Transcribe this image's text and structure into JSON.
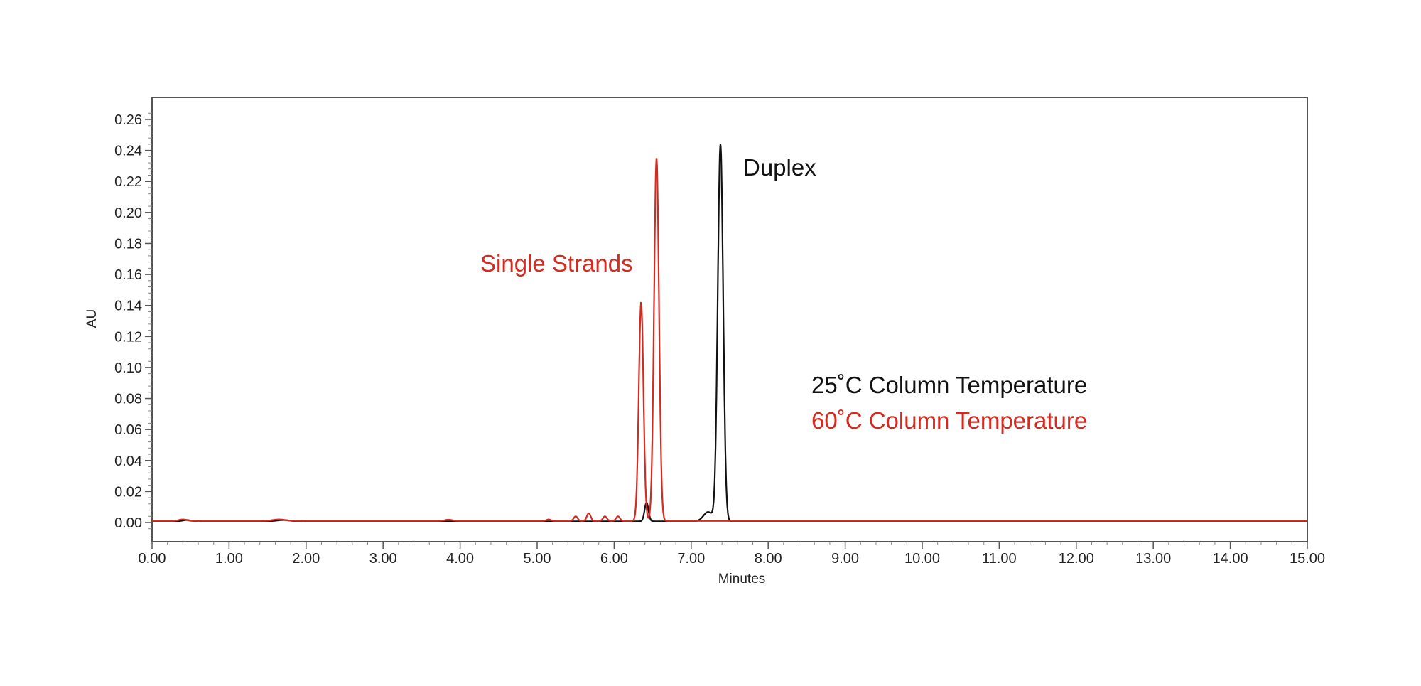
{
  "chart_data": {
    "type": "line",
    "title": "",
    "xlabel": "Minutes",
    "ylabel": "AU",
    "xlim": [
      0,
      15
    ],
    "ylim": [
      -0.01,
      0.27
    ],
    "xticks": [
      "0.00",
      "1.00",
      "2.00",
      "3.00",
      "4.00",
      "5.00",
      "6.00",
      "7.00",
      "8.00",
      "9.00",
      "10.00",
      "11.00",
      "12.00",
      "13.00",
      "14.00",
      "15.00"
    ],
    "yticks": [
      "0.00",
      "0.02",
      "0.04",
      "0.06",
      "0.08",
      "0.10",
      "0.12",
      "0.14",
      "0.16",
      "0.18",
      "0.20",
      "0.22",
      "0.24",
      "0.26"
    ],
    "grid": false,
    "series": [
      {
        "name": "25˚C Column Temperature",
        "color": "#111111",
        "baseline": 0.0008,
        "peaks": [
          {
            "rt": 0.45,
            "height": 0.0008,
            "width": 0.05
          },
          {
            "rt": 1.7,
            "height": 0.0008,
            "width": 0.08
          },
          {
            "rt": 6.42,
            "height": 0.012,
            "width": 0.025
          },
          {
            "rt": 7.22,
            "height": 0.006,
            "width": 0.06
          },
          {
            "rt": 7.38,
            "height": 0.243,
            "width": 0.035
          }
        ]
      },
      {
        "name": "60˚C Column Temperature",
        "color": "#d42a1f",
        "baseline": 0.001,
        "peaks": [
          {
            "rt": 0.4,
            "height": 0.001,
            "width": 0.05
          },
          {
            "rt": 1.65,
            "height": 0.001,
            "width": 0.08
          },
          {
            "rt": 3.85,
            "height": 0.0008,
            "width": 0.05
          },
          {
            "rt": 5.15,
            "height": 0.001,
            "width": 0.03
          },
          {
            "rt": 5.5,
            "height": 0.003,
            "width": 0.025
          },
          {
            "rt": 5.67,
            "height": 0.005,
            "width": 0.025
          },
          {
            "rt": 5.88,
            "height": 0.003,
            "width": 0.025
          },
          {
            "rt": 6.05,
            "height": 0.003,
            "width": 0.025
          },
          {
            "rt": 6.35,
            "height": 0.141,
            "width": 0.03
          },
          {
            "rt": 6.55,
            "height": 0.234,
            "width": 0.032
          }
        ]
      }
    ],
    "annotations": [
      {
        "text": "Duplex",
        "color": "#111111"
      },
      {
        "text": "Single Strands",
        "color": "#d42a1f"
      }
    ],
    "legend": {
      "placement": "center-right",
      "entries": [
        "25˚C Column Temperature",
        "60˚C Column Temperature"
      ]
    }
  }
}
